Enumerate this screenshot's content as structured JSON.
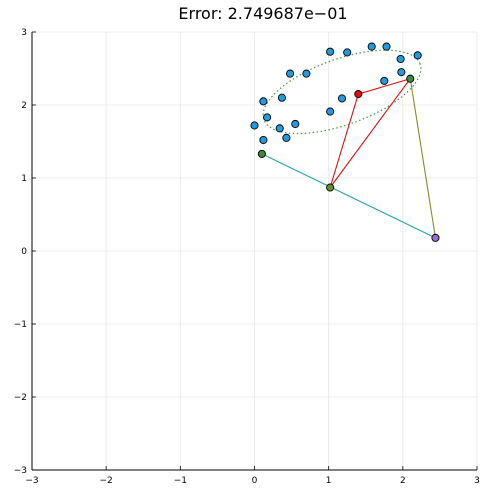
{
  "chart_data": {
    "type": "scatter",
    "title": "Error: 2.749687e−01",
    "xlabel": "",
    "ylabel": "",
    "xlim": [
      -3,
      3
    ],
    "ylim": [
      -3,
      3
    ],
    "x_ticks": [
      -3,
      -2,
      -1,
      0,
      1,
      2,
      3
    ],
    "y_ticks": [
      -3,
      -2,
      -1,
      0,
      1,
      2,
      3
    ],
    "x_tick_labels": [
      "−3",
      "−2",
      "−1",
      "0",
      "1",
      "2",
      "3"
    ],
    "y_tick_labels": [
      "−3",
      "−2",
      "−1",
      "0",
      "1",
      "2",
      "3"
    ],
    "grid": true,
    "legend": "none",
    "data_points": {
      "color": "#1f9be0",
      "points": [
        [
          1.02,
          2.73
        ],
        [
          1.25,
          2.72
        ],
        [
          1.58,
          2.8
        ],
        [
          1.78,
          2.8
        ],
        [
          2.2,
          2.68
        ],
        [
          1.97,
          2.63
        ],
        [
          1.98,
          2.45
        ],
        [
          1.75,
          2.33
        ],
        [
          1.18,
          2.09
        ],
        [
          1.02,
          1.91
        ],
        [
          0.55,
          1.74
        ],
        [
          0.43,
          1.55
        ],
        [
          0.34,
          1.68
        ],
        [
          0.17,
          1.83
        ],
        [
          0.12,
          2.05
        ],
        [
          0.37,
          2.1
        ],
        [
          0.48,
          2.43
        ],
        [
          0.7,
          2.43
        ],
        [
          0.0,
          1.72
        ],
        [
          0.12,
          1.52
        ]
      ]
    },
    "ellipse_fit": {
      "color": "#3a9a3a",
      "center": [
        1.18,
        2.18
      ],
      "semi_major": 1.12,
      "semi_minor": 0.45,
      "angle_deg": 20
    },
    "linkage": {
      "nodes": [
        {
          "x": 0.1,
          "y": 1.33,
          "color": "#3a8a3a"
        },
        {
          "x": 1.02,
          "y": 0.87,
          "color": "#6b8e23"
        },
        {
          "x": 2.44,
          "y": 0.18,
          "color": "#9b6fd0"
        },
        {
          "x": 2.1,
          "y": 2.36,
          "color": "#3a8a3a"
        },
        {
          "x": 1.4,
          "y": 2.15,
          "color": "#e01010"
        }
      ],
      "links": [
        {
          "from": 0,
          "to": 2,
          "color": "#26a69a"
        },
        {
          "from": 2,
          "to": 3,
          "color": "#8a8a2a"
        },
        {
          "from": 1,
          "to": 3,
          "color": "#e01010"
        },
        {
          "from": 1,
          "to": 4,
          "color": "#e01010"
        },
        {
          "from": 4,
          "to": 3,
          "color": "#e01010"
        }
      ]
    }
  }
}
